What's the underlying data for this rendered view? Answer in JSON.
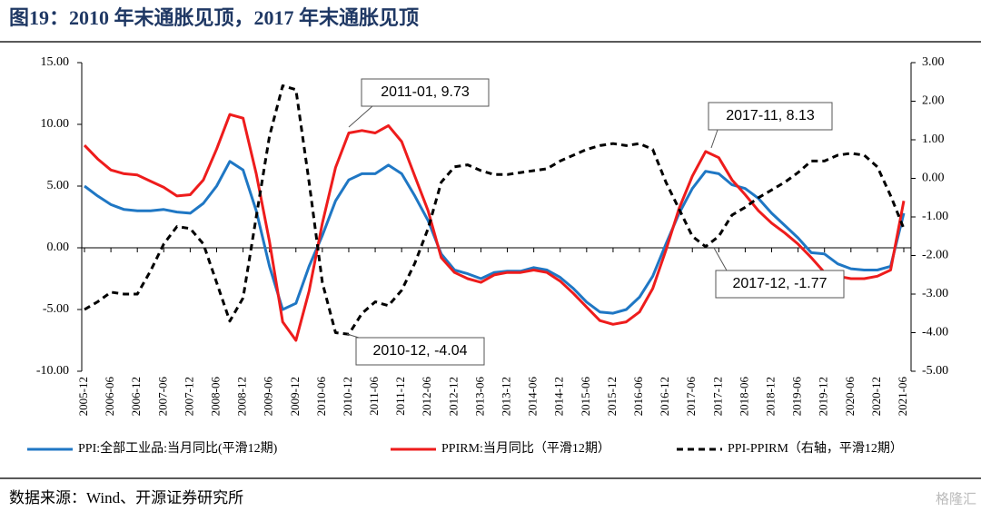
{
  "chart_data": {
    "type": "line",
    "title": "图19：2010 年末通胀见顶，2017 年末通胀见顶",
    "source": "数据来源：Wind、开源证券研究所",
    "watermark": "格隆汇",
    "categories": [
      "2005-12",
      null,
      "2006-06",
      null,
      "2006-12",
      null,
      "2007-06",
      null,
      "2007-12",
      null,
      "2008-06",
      null,
      "2008-12",
      null,
      "2009-06",
      null,
      "2009-12",
      null,
      "2010-06",
      null,
      "2010-12",
      null,
      "2011-06",
      null,
      "2011-12",
      null,
      "2012-06",
      null,
      "2012-12",
      null,
      "2013-06",
      null,
      "2013-12",
      null,
      "2014-06",
      null,
      "2014-12",
      null,
      "2015-06",
      null,
      "2015-12",
      null,
      "2016-06",
      null,
      "2016-12",
      null,
      "2017-06",
      null,
      "2017-12",
      null,
      "2018-06",
      null,
      "2018-12",
      null,
      "2019-06",
      null,
      "2019-12",
      null,
      "2020-06",
      null,
      "2020-12",
      null,
      "2021-06"
    ],
    "series": [
      {
        "name": "PPI:全部工业品:当月同比(平滑12期)",
        "color": "#1f77c4",
        "dash": false,
        "values": [
          5.0,
          4.2,
          3.5,
          3.1,
          3.0,
          3.0,
          3.1,
          2.9,
          2.8,
          3.6,
          5.0,
          7.0,
          6.3,
          3.0,
          -1.5,
          -5.0,
          -4.5,
          -1.5,
          1.0,
          3.8,
          5.5,
          6.0,
          6.0,
          6.7,
          6.0,
          4.2,
          2.2,
          -0.5,
          -1.8,
          -2.1,
          -2.5,
          -2.0,
          -1.9,
          -1.9,
          -1.6,
          -1.8,
          -2.4,
          -3.3,
          -4.4,
          -5.2,
          -5.3,
          -5.0,
          -4.0,
          -2.3,
          0.3,
          2.8,
          4.8,
          6.2,
          6.0,
          5.1,
          4.8,
          4.0,
          2.8,
          1.8,
          0.8,
          -0.4,
          -0.5,
          -1.3,
          -1.7,
          -1.8,
          -1.8,
          -1.5,
          2.8
        ]
      },
      {
        "name": "PPIRM:当月同比（平滑12期）",
        "color": "#ee1c1c",
        "dash": false,
        "values": [
          8.3,
          7.2,
          6.3,
          6.0,
          5.9,
          5.4,
          4.9,
          4.2,
          4.3,
          5.5,
          8.0,
          10.8,
          10.5,
          6.0,
          0.5,
          -6.0,
          -7.5,
          -3.5,
          2.0,
          6.5,
          9.3,
          9.5,
          9.3,
          9.9,
          8.6,
          5.8,
          3.0,
          -0.8,
          -2.0,
          -2.5,
          -2.8,
          -2.2,
          -2.0,
          -2.0,
          -1.8,
          -2.0,
          -2.7,
          -3.7,
          -4.8,
          -5.9,
          -6.2,
          -6.0,
          -5.2,
          -3.3,
          -0.2,
          3.2,
          5.8,
          7.8,
          7.3,
          5.5,
          4.3,
          3.0,
          2.0,
          1.2,
          0.3,
          -0.8,
          -2.0,
          -2.3,
          -2.5,
          -2.5,
          -2.3,
          -1.8,
          3.8
        ]
      },
      {
        "name": "PPI-PPIRM（右轴，平滑12期）",
        "color": "#000000",
        "dash": true,
        "axis": "y2",
        "values": [
          -3.4,
          -3.2,
          -2.95,
          -3.0,
          -3.0,
          -2.4,
          -1.7,
          -1.25,
          -1.3,
          -1.7,
          -2.7,
          -3.7,
          -3.1,
          -1.0,
          1.1,
          2.4,
          2.3,
          -0.1,
          -2.7,
          -4.0,
          -4.04,
          -3.5,
          -3.2,
          -3.3,
          -2.9,
          -2.2,
          -1.3,
          -0.1,
          0.3,
          0.35,
          0.2,
          0.1,
          0.1,
          0.15,
          0.2,
          0.25,
          0.45,
          0.6,
          0.75,
          0.85,
          0.9,
          0.85,
          0.9,
          0.75,
          -0.1,
          -0.8,
          -1.5,
          -1.77,
          -1.5,
          -0.95,
          -0.75,
          -0.5,
          -0.3,
          -0.1,
          0.15,
          0.45,
          0.45,
          0.6,
          0.65,
          0.6,
          0.3,
          -0.45,
          -1.3
        ]
      }
    ],
    "ylim": [
      -10,
      15
    ],
    "yticks": [
      {
        "value": -10,
        "label": "-10.00"
      },
      {
        "value": -5,
        "label": "-5.00"
      },
      {
        "value": 0,
        "label": "0.00"
      },
      {
        "value": 5,
        "label": "5.00"
      },
      {
        "value": 10,
        "label": "10.00"
      },
      {
        "value": 15,
        "label": "15.00"
      }
    ],
    "y2lim": [
      -5,
      3
    ],
    "y2ticks": [
      {
        "value": -5,
        "label": "-5.00"
      },
      {
        "value": -4,
        "label": "-4.00"
      },
      {
        "value": -3,
        "label": "-3.00"
      },
      {
        "value": -2,
        "label": "-2.00"
      },
      {
        "value": -1,
        "label": "-1.00"
      },
      {
        "value": 0,
        "label": "0.00"
      },
      {
        "value": 1,
        "label": "1.00"
      },
      {
        "value": 2,
        "label": "2.00"
      },
      {
        "value": 3,
        "label": "3.00"
      }
    ],
    "annotations": [
      {
        "text": "2011-01, 9.73"
      },
      {
        "text": "2017-11, 8.13"
      },
      {
        "text": "2010-12, -4.04"
      },
      {
        "text": "2017-12, -1.77"
      }
    ]
  }
}
